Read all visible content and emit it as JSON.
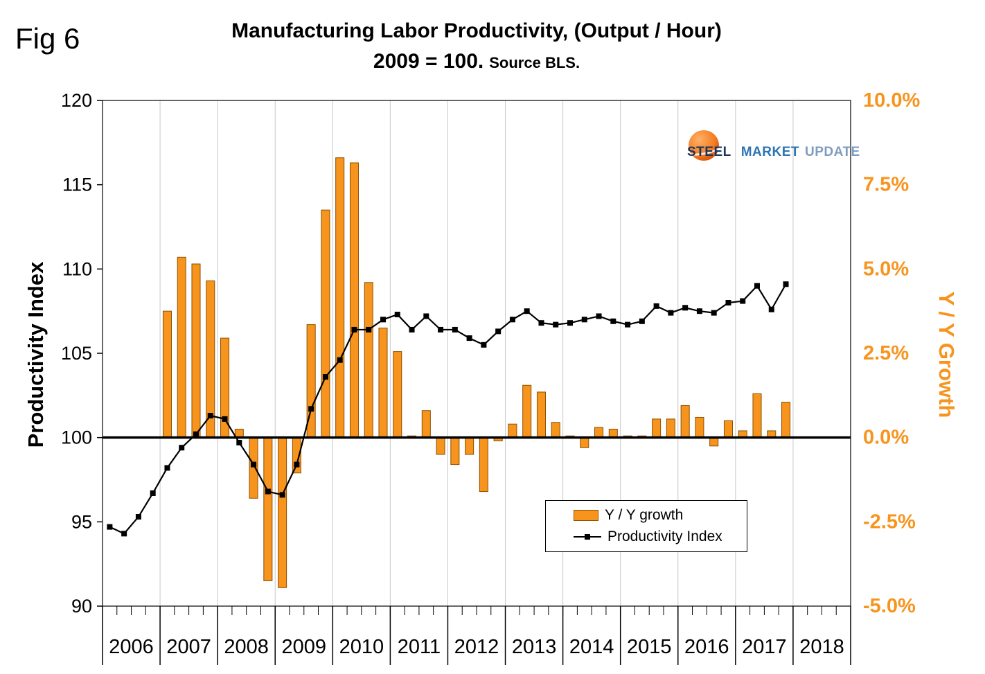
{
  "fig_label": "Fig 6",
  "title": "Manufacturing Labor Productivity, (Output / Hour)",
  "subtitle_main": "2009 = 100.",
  "subtitle_source": "Source BLS.",
  "logo": {
    "steel": "STEEL",
    "market": "MARKET",
    "update": "UPDATE"
  },
  "legend": {
    "bar_label": "Y / Y growth",
    "line_label": "Productivity Index"
  },
  "colors": {
    "bar": "#F7941D",
    "bar_outline": "#8C5000",
    "line": "#000000",
    "right_axis": "#F7941D",
    "grid": "#C8C8C8"
  },
  "chart_data": {
    "type": "bar",
    "note": "combo chart: quarterly bars (Y/Y growth %, right axis) + line (Productivity Index, left axis)",
    "years": [
      2006,
      2007,
      2008,
      2009,
      2010,
      2011,
      2012,
      2013,
      2014,
      2015,
      2016,
      2017,
      2018
    ],
    "x_slots": 52,
    "categories": [
      "2006 Q1",
      "2006 Q2",
      "2006 Q3",
      "2006 Q4",
      "2007 Q1",
      "2007 Q2",
      "2007 Q3",
      "2007 Q4",
      "2008 Q1",
      "2008 Q2",
      "2008 Q3",
      "2008 Q4",
      "2009 Q1",
      "2009 Q2",
      "2009 Q3",
      "2009 Q4",
      "2010 Q1",
      "2010 Q2",
      "2010 Q3",
      "2010 Q4",
      "2011 Q1",
      "2011 Q2",
      "2011 Q3",
      "2011 Q4",
      "2012 Q1",
      "2012 Q2",
      "2012 Q3",
      "2012 Q4",
      "2013 Q1",
      "2013 Q2",
      "2013 Q3",
      "2013 Q4",
      "2014 Q1",
      "2014 Q2",
      "2014 Q3",
      "2014 Q4",
      "2015 Q1",
      "2015 Q2",
      "2015 Q3",
      "2015 Q4",
      "2016 Q1",
      "2016 Q2",
      "2016 Q3",
      "2016 Q4",
      "2017 Q1",
      "2017 Q2",
      "2017 Q3",
      "2017 Q4"
    ],
    "series": [
      {
        "name": "Y / Y growth",
        "type": "bar",
        "axis": "right",
        "unit": "%",
        "values": [
          null,
          null,
          null,
          null,
          3.75,
          5.35,
          5.15,
          4.65,
          2.95,
          0.25,
          -1.8,
          -4.25,
          -4.45,
          -1.05,
          3.35,
          6.75,
          8.3,
          8.15,
          4.6,
          3.25,
          2.55,
          0.05,
          0.8,
          -0.5,
          -0.8,
          -0.5,
          -1.6,
          -0.1,
          0.4,
          1.55,
          1.35,
          0.45,
          0.05,
          -0.3,
          0.3,
          0.25,
          0.05,
          0.05,
          0.55,
          0.55,
          0.95,
          0.6,
          -0.25,
          0.5,
          0.2,
          1.3,
          0.2,
          1.05
        ]
      },
      {
        "name": "Productivity Index",
        "type": "line",
        "axis": "left",
        "values": [
          94.7,
          94.3,
          95.3,
          96.7,
          98.2,
          99.4,
          100.2,
          101.3,
          101.1,
          99.7,
          98.4,
          96.8,
          96.6,
          98.4,
          101.7,
          103.6,
          104.6,
          106.4,
          106.4,
          107.0,
          107.3,
          106.4,
          107.2,
          106.4,
          106.4,
          105.9,
          105.5,
          106.3,
          107.0,
          107.5,
          106.8,
          106.7,
          106.8,
          107.0,
          107.2,
          106.9,
          106.7,
          106.9,
          107.8,
          107.4,
          107.7,
          107.5,
          107.4,
          108.0,
          108.1,
          109.0,
          107.6,
          109.1
        ]
      }
    ],
    "left_axis": {
      "label": "Productivity Index",
      "min": 90,
      "max": 120,
      "ticks": [
        90,
        95,
        100,
        105,
        110,
        115,
        120
      ]
    },
    "right_axis": {
      "label": "Y / Y Growth",
      "min": -5,
      "max": 10,
      "tick_values": [
        -5,
        -2.5,
        0,
        2.5,
        5,
        7.5,
        10
      ],
      "ticks": [
        "-5.0%",
        "-2.5%",
        "0.0%",
        "2.5%",
        "5.0%",
        "7.5%",
        "10.0%"
      ]
    },
    "grid": "vertical-year-lines",
    "legend_position": "inside-lower-right",
    "zero_baseline": true
  }
}
